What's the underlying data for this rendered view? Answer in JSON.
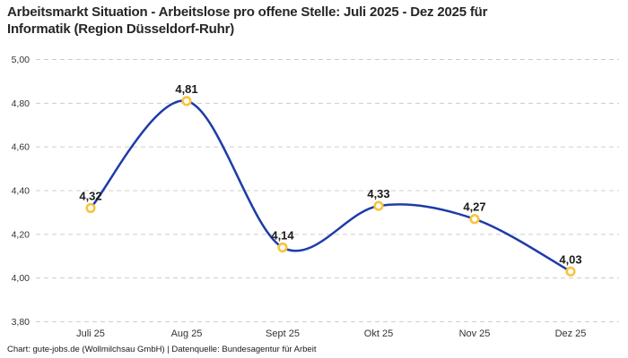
{
  "page": {
    "title_lines": [
      "Arbeitsmarkt Situation - Arbeitslose pro offene Stelle: Juli 2025 - Dez 2025 für",
      "Informatik (Region Düsseldorf-Ruhr)"
    ],
    "footer": "Chart: gute-jobs.de (Wollmilchsau GmbH) | Datenquelle: Bundesagentur für Arbeit"
  },
  "chart_data": {
    "type": "line",
    "title": "Arbeitsmarkt Situation - Arbeitslose pro offene Stelle: Juli 2025 - Dez 2025 für Informatik (Region Düsseldorf-Ruhr)",
    "categories": [
      "Juli 25",
      "Aug 25",
      "Sept 25",
      "Okt 25",
      "Nov 25",
      "Dez 25"
    ],
    "values": [
      4.32,
      4.81,
      4.14,
      4.33,
      4.27,
      4.03
    ],
    "value_labels": [
      "4,32",
      "4,81",
      "4,14",
      "4,33",
      "4,27",
      "4,03"
    ],
    "ylim": [
      3.8,
      5.0
    ],
    "y_ticks": [
      5.0,
      4.8,
      4.6,
      4.4,
      4.2,
      4.0,
      3.8
    ],
    "y_tick_labels": [
      "5,00",
      "4,80",
      "4,60",
      "4,40",
      "4,20",
      "4,00",
      "3,80"
    ],
    "xlabel": "",
    "ylabel": "",
    "legend": "none",
    "grid": "horizontal-dashed",
    "colors": {
      "line": "#1e3ca8",
      "marker_stroke": "#f9c33d",
      "marker_fill": "#ffffff",
      "grid": "#cccccc",
      "value_label": "#1a1a1a",
      "axis_text": "#333333"
    }
  }
}
